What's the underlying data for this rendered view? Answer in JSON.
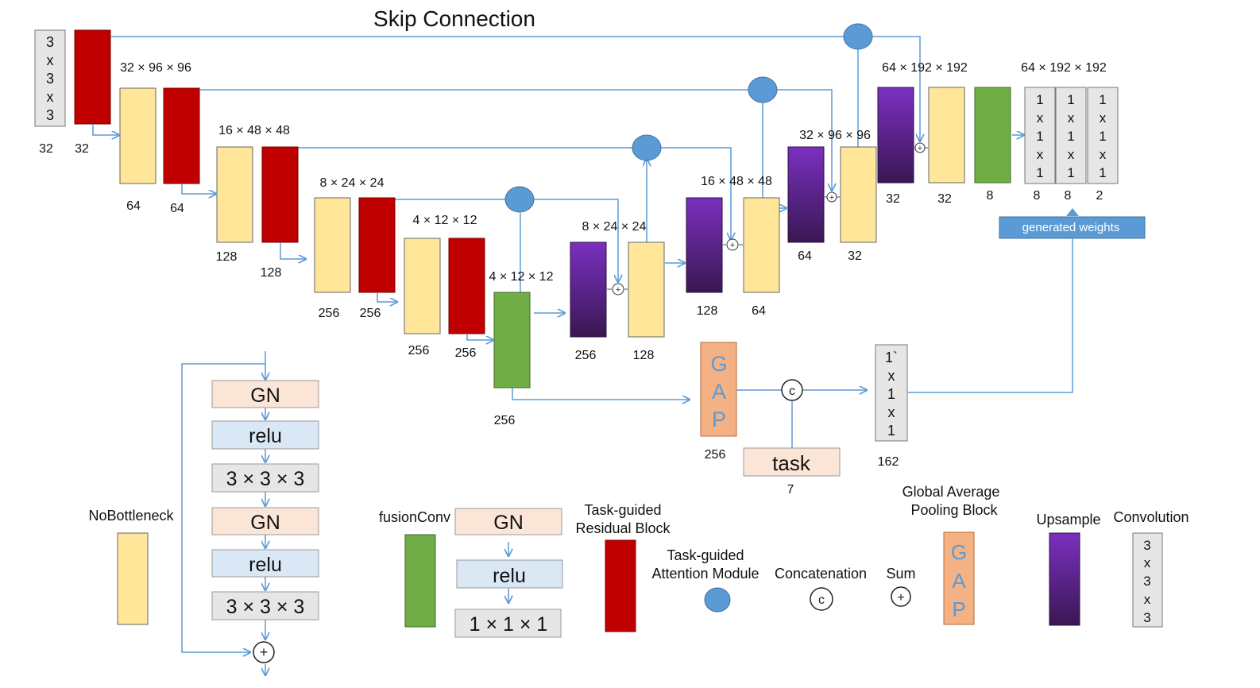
{
  "title": "Skip Connection",
  "colors": {
    "residual": "#c00000",
    "feature": "#ffe699",
    "fusion": "#70ad47",
    "upsample_top": "#7b30c0",
    "upsample_bottom": "#3a1752",
    "attention": "#5b9bd5",
    "gap": "#f4b183",
    "gn": "#fbe5d6",
    "relu": "#dae8f6",
    "conv": "#e7e6e6",
    "arrow": "#5b9bd5",
    "weights_box": "#5b9bd5"
  },
  "encoder": {
    "input_conv_text": [
      "3",
      "x",
      "3",
      "x",
      "3"
    ],
    "channel_labels": [
      "32",
      "32",
      "64",
      "64",
      "128",
      "128",
      "256",
      "256",
      "256",
      "256",
      "256"
    ],
    "size_labels": [
      "32 × 96 × 96",
      "16 × 48 × 48",
      "8 × 24 × 24",
      "4 × 12 × 12",
      "4 × 12 × 12"
    ]
  },
  "decoder": {
    "channel_labels": [
      "256",
      "128",
      "128",
      "64",
      "64",
      "32",
      "32",
      "32",
      "8",
      "8",
      "8",
      "2"
    ],
    "size_labels": [
      "8 × 24 × 24",
      "16 × 48 × 48",
      "32 × 96 × 96",
      "64 × 192 × 192",
      "64 × 192 × 192"
    ],
    "output_conv_text": [
      "1",
      "x",
      "1",
      "x",
      "1"
    ],
    "generated_weights": "generated weights"
  },
  "controller": {
    "gap_letters": [
      "G",
      "A",
      "P"
    ],
    "gap_channels": "256",
    "task_label": "task",
    "task_channels": "7",
    "concat_symbol": "c",
    "vector_text": [
      "1`",
      "x",
      "1",
      "x",
      "1"
    ],
    "vector_channels": "162"
  },
  "legend": {
    "nobottleneck": "NoBottleneck",
    "block_ops": [
      "GN",
      "relu",
      "3 × 3 × 3",
      "GN",
      "relu",
      "3 × 3 × 3"
    ],
    "fusionconv": "fusionConv",
    "fusion_ops": [
      "GN",
      "relu",
      "1 × 1 × 1"
    ],
    "task_guided_residual": [
      "Task-guided",
      "Residual Block"
    ],
    "task_guided_attention": [
      "Task-guided",
      "Attention Module"
    ],
    "concatenation": "Concatenation",
    "concat_symbol": "c",
    "sum": "Sum",
    "sum_symbol": "+",
    "gap_block": [
      "Global Average",
      "Pooling Block"
    ],
    "gap_letters": [
      "G",
      "A",
      "P"
    ],
    "upsample": "Upsample",
    "convolution": "Convolution",
    "conv_text": [
      "3",
      "x",
      "3",
      "x",
      "3"
    ]
  }
}
